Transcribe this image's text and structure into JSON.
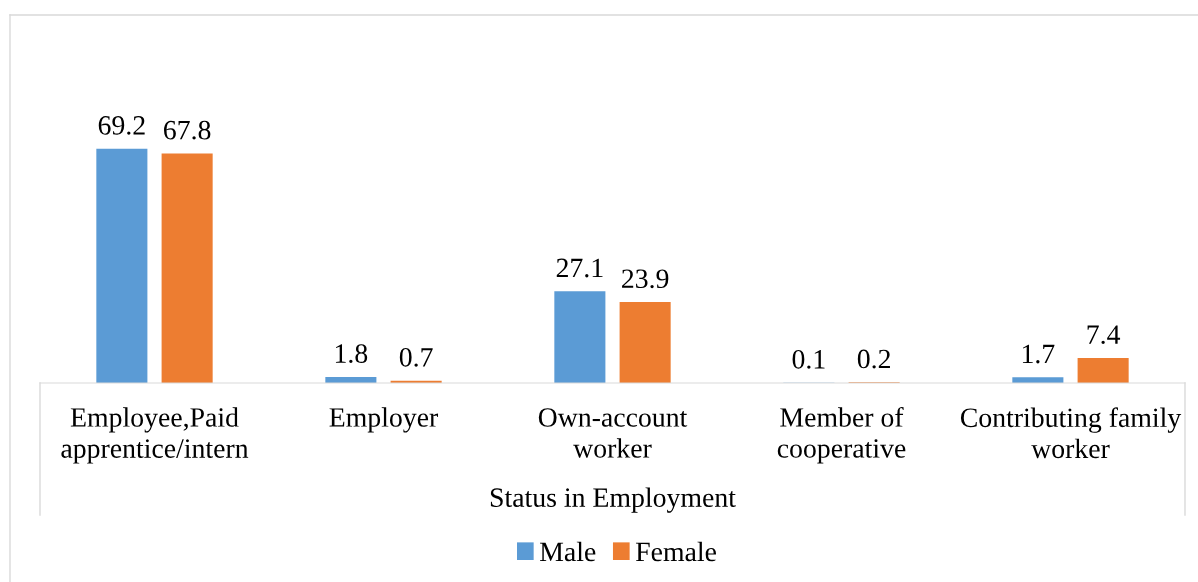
{
  "chart_data": {
    "type": "bar",
    "xlabel": "Status in Employment",
    "categories": [
      "Employee,Paid apprentice/intern",
      "Employer",
      "Own-account worker",
      "Member of cooperative",
      "Contributing family worker"
    ],
    "series": [
      {
        "name": "Male",
        "color": "#5b9bd5",
        "values": [
          69.2,
          1.8,
          27.1,
          0.1,
          1.7
        ]
      },
      {
        "name": "Female",
        "color": "#ed7d31",
        "values": [
          67.8,
          0.7,
          23.9,
          0.2,
          7.4
        ]
      }
    ],
    "data_labels": true,
    "legend": "bottom",
    "tick_labels": "x",
    "grid": false
  }
}
